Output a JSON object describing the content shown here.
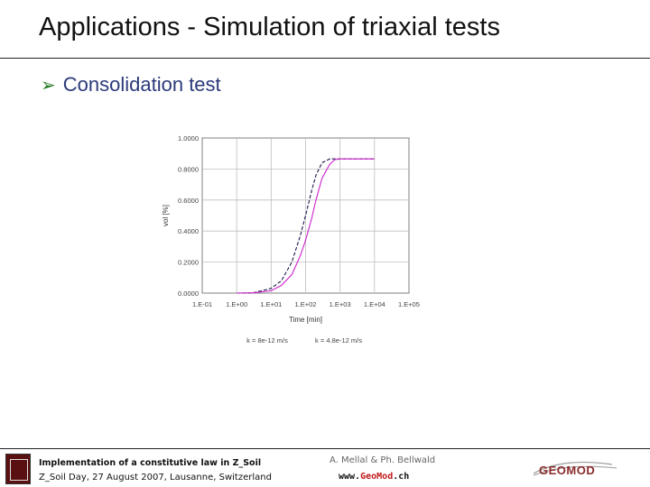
{
  "slide": {
    "title": "Applications - Simulation of triaxial tests",
    "bullet": "Consolidation test"
  },
  "footer": {
    "line1": "Implementation of a constitutive law in Z_Soil",
    "line2": "Z_Soil Day, 27 August 2007, Lausanne, Switzerland",
    "authors": "A. Mellal & Ph. Bellwald",
    "www_prefix": "www.",
    "www_geo": "Geo",
    "www_mod": "Mod",
    "www_suffix": ".ch",
    "logo_right_text": "GEOMOD"
  },
  "colors": {
    "series1": "#1a1a4a",
    "series2": "#cc22cc",
    "grid": "#bfbfbf",
    "bullet_arrow": "#1f7a1f",
    "bullet_text": "#2b3a7a"
  },
  "chart_data": {
    "type": "line",
    "xlabel": "Time [min]",
    "ylabel": "vol [%]",
    "xscale": "log",
    "xlim": [
      0.1,
      100000
    ],
    "ylim": [
      0,
      1
    ],
    "grid": true,
    "x_tick_labels": [
      "1.E-01",
      "1.E+00",
      "1.E+01",
      "1.E+02",
      "1.E+03",
      "1.E+04",
      "1.E+05"
    ],
    "y_tick_labels": [
      "0.0000",
      "0.2000",
      "0.4000",
      "0.6000",
      "0.8000",
      "1.0000"
    ],
    "legend_position": "bottom",
    "series": [
      {
        "name": "k = 8e-12 m/s",
        "style": "dashed",
        "x": [
          1,
          3,
          10,
          20,
          40,
          70,
          100,
          150,
          200,
          300,
          500,
          1000,
          3000,
          10000
        ],
        "y": [
          0.0,
          0.002,
          0.03,
          0.08,
          0.2,
          0.37,
          0.5,
          0.66,
          0.76,
          0.84,
          0.865,
          0.865,
          0.865,
          0.865
        ]
      },
      {
        "name": "k = 4.8e-12 m/s",
        "style": "solid",
        "x": [
          1,
          3,
          10,
          20,
          40,
          70,
          100,
          150,
          200,
          300,
          500,
          700,
          1000,
          3000,
          10000
        ],
        "y": [
          0.0,
          0.002,
          0.015,
          0.05,
          0.12,
          0.24,
          0.34,
          0.48,
          0.6,
          0.74,
          0.83,
          0.86,
          0.865,
          0.865,
          0.865
        ]
      }
    ]
  }
}
